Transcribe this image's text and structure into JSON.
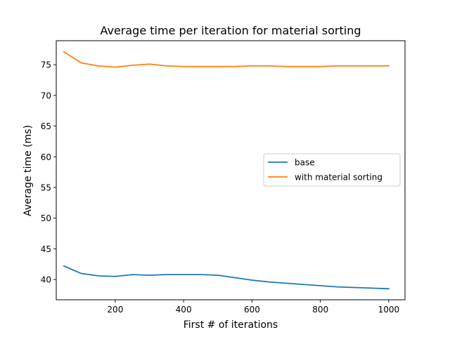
{
  "chart_data": {
    "type": "line",
    "title": "Average time per iteration for material sorting",
    "xlabel": "First # of iterations",
    "ylabel": "Average time (ms)",
    "xlim": [
      27.5,
      1047.5
    ],
    "ylim": [
      36.7,
      78.9
    ],
    "x_ticks": [
      200,
      400,
      600,
      800,
      1000
    ],
    "y_ticks": [
      40,
      45,
      50,
      55,
      60,
      65,
      70,
      75
    ],
    "grid": false,
    "legend_position": "center-right",
    "x": [
      50,
      100,
      150,
      200,
      250,
      300,
      350,
      400,
      450,
      500,
      550,
      600,
      650,
      700,
      750,
      800,
      850,
      900,
      950,
      1000
    ],
    "series": [
      {
        "name": "base",
        "color": "#1f77b4",
        "values": [
          42.2,
          41.0,
          40.6,
          40.5,
          40.8,
          40.7,
          40.8,
          40.8,
          40.8,
          40.7,
          40.3,
          39.9,
          39.6,
          39.4,
          39.2,
          39.0,
          38.8,
          38.7,
          38.6,
          38.5
        ]
      },
      {
        "name": "with material sorting",
        "color": "#ff7f0e",
        "values": [
          77.1,
          75.3,
          74.8,
          74.6,
          74.9,
          75.1,
          74.8,
          74.7,
          74.7,
          74.7,
          74.7,
          74.8,
          74.8,
          74.7,
          74.7,
          74.7,
          74.8,
          74.8,
          74.8,
          74.8
        ]
      }
    ]
  }
}
